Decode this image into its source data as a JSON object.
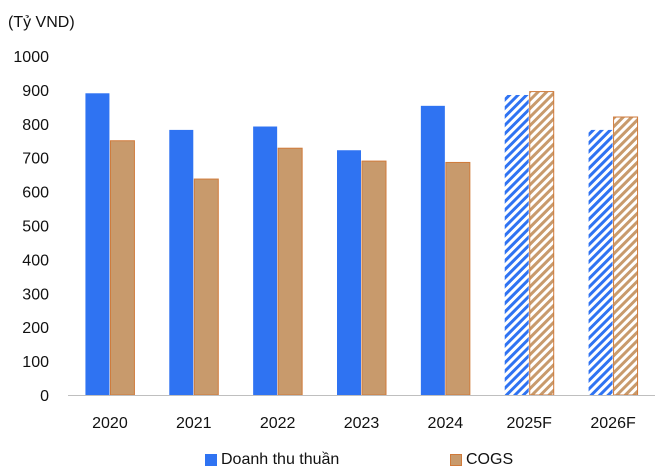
{
  "chart_data": {
    "type": "bar",
    "unit_label": "(Tỷ VND)",
    "categories": [
      "2020",
      "2021",
      "2022",
      "2023",
      "2024",
      "2025F",
      "2026F"
    ],
    "series": [
      {
        "name": "Doanh thu thuần",
        "values": [
          890,
          782,
          792,
          722,
          853,
          885,
          782
        ],
        "color": "#2f73f2",
        "pattern": "hatch-forecast"
      },
      {
        "name": "COGS",
        "values": [
          750,
          637,
          728,
          690,
          686,
          895,
          820
        ],
        "color": "#c89a6c",
        "border": "#d07a3a",
        "pattern": "hatch-forecast"
      }
    ],
    "ylim": [
      0,
      1000
    ],
    "yticks": [
      "0",
      "100",
      "200",
      "300",
      "400",
      "500",
      "600",
      "700",
      "800",
      "900",
      "1000"
    ],
    "forecast_categories": [
      "2025F",
      "2026F"
    ],
    "grid": false,
    "legend_position": "bottom"
  }
}
